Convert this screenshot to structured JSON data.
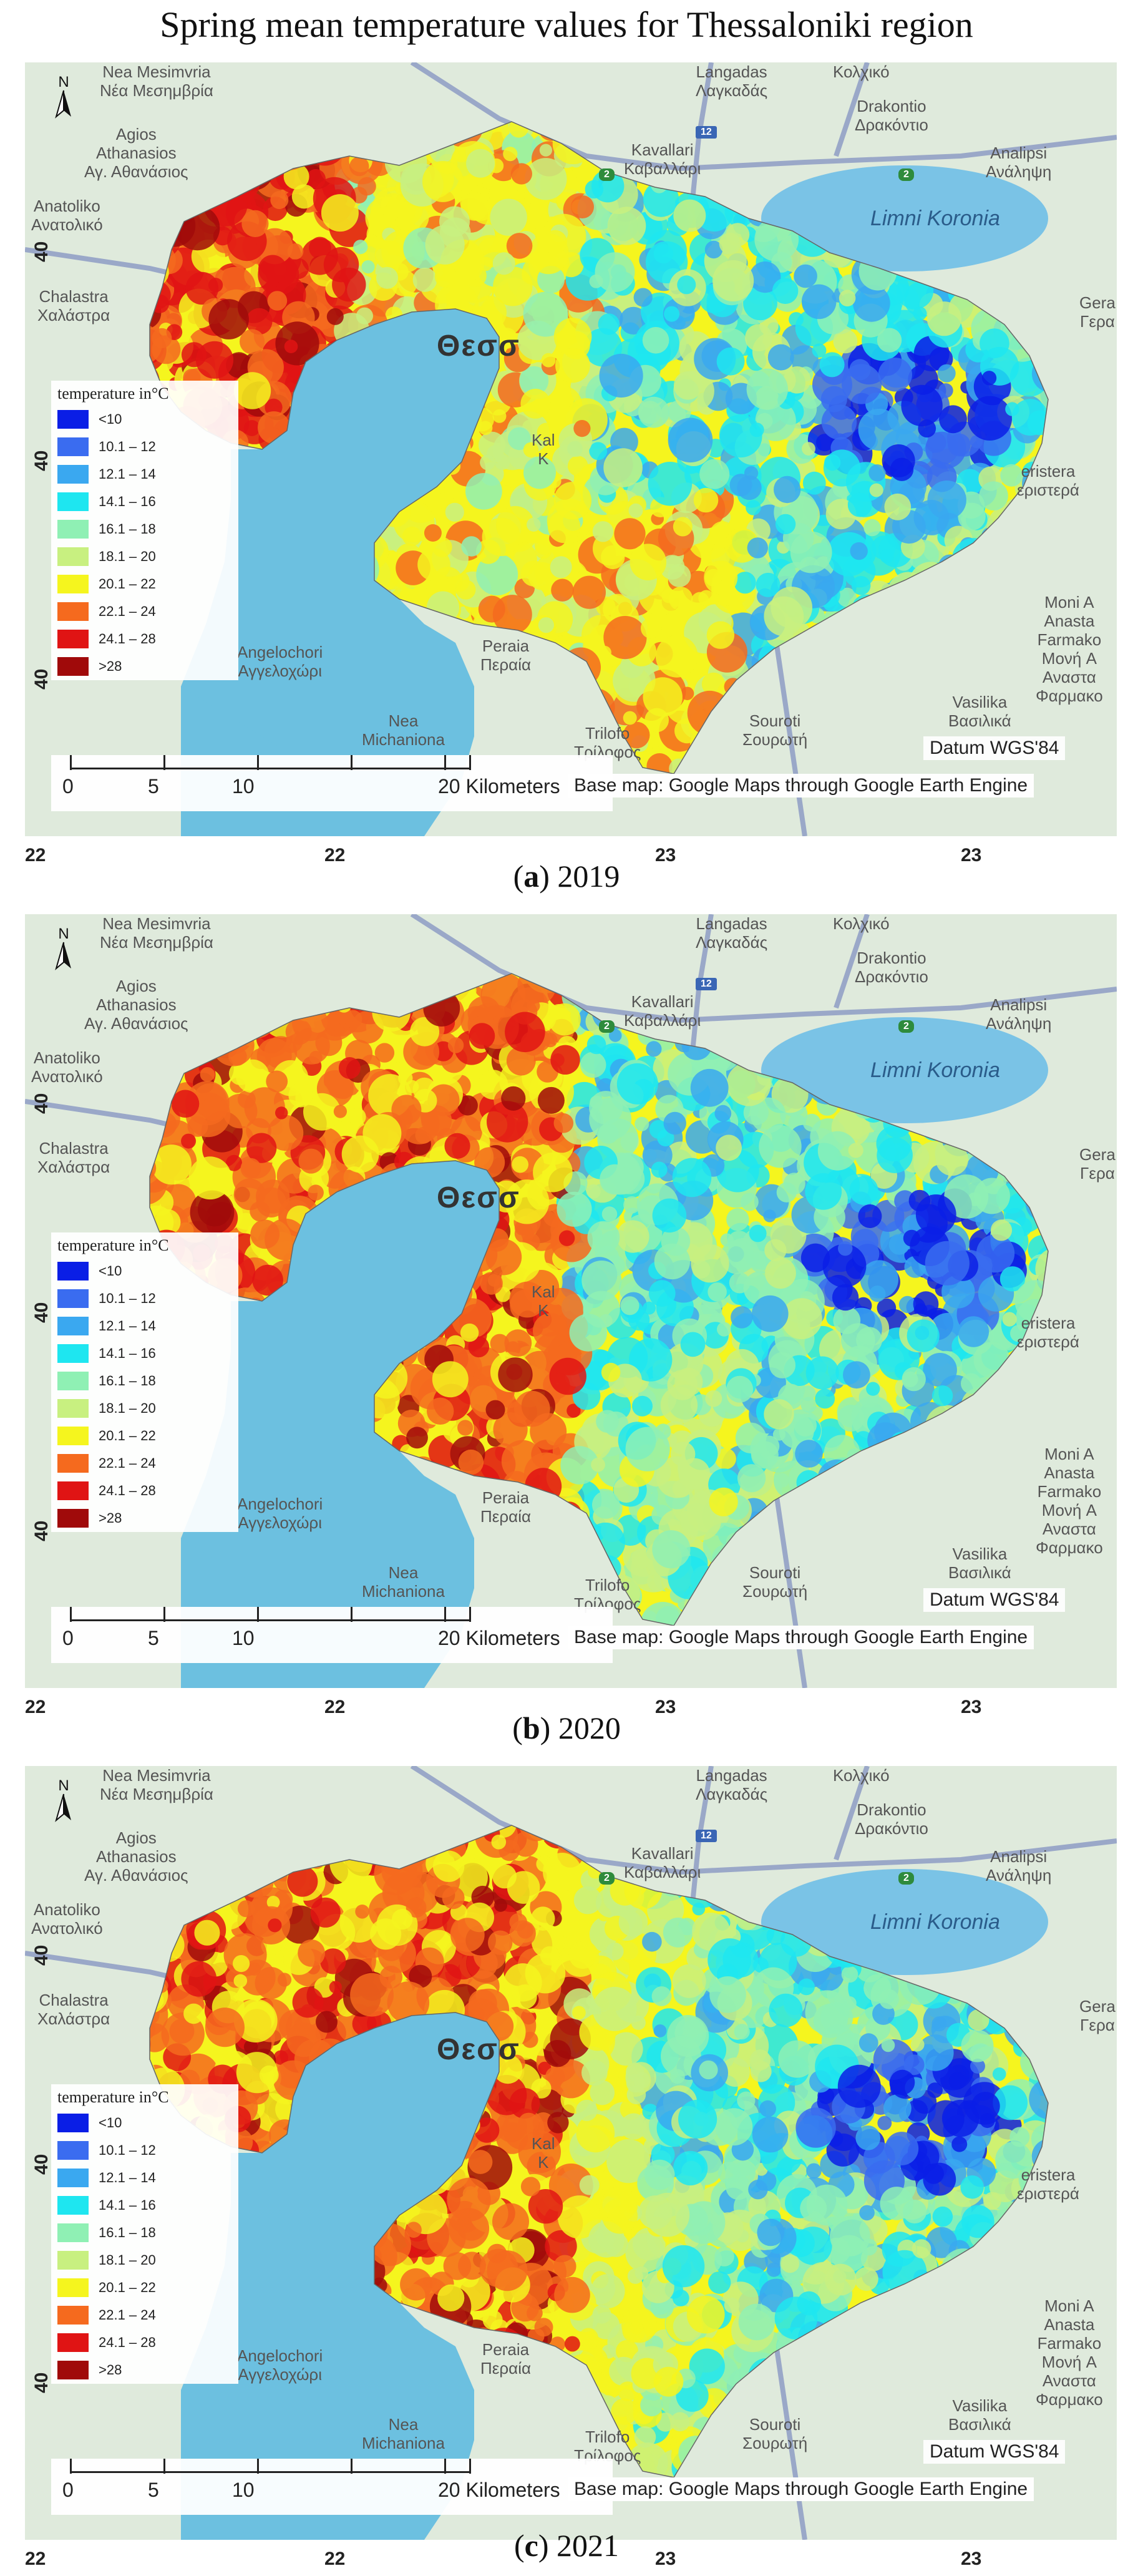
{
  "title": "Spring mean temperature values for Thessaloniki region",
  "legend": {
    "title": "temperature in°C",
    "items": [
      {
        "label": "<10",
        "color": "#0a1ee6"
      },
      {
        "label": "10.1 – 12",
        "color": "#3a6cf0"
      },
      {
        "label": "12.1 – 14",
        "color": "#3aa8f0"
      },
      {
        "label": "14.1 – 16",
        "color": "#1ee6f0"
      },
      {
        "label": "16.1 – 18",
        "color": "#8ff0b4"
      },
      {
        "label": "18.1 – 20",
        "color": "#c8f080"
      },
      {
        "label": "20.1 – 22",
        "color": "#f5f51e"
      },
      {
        "label": "22.1 – 24",
        "color": "#f56a1e"
      },
      {
        "label": "24.1 – 28",
        "color": "#e01414"
      },
      {
        "label": ">28",
        "color": "#a00a0a"
      }
    ]
  },
  "scale": {
    "labels": [
      "0",
      "5",
      "10",
      "20 Kilometers"
    ]
  },
  "datum": "Datum WGS'84",
  "basemap_credit": "Base map: Google Maps through Google Earth Engine",
  "north_label": "N",
  "lat_ticks": [
    "40",
    "40",
    "40"
  ],
  "lon_ticks": [
    "22",
    "22",
    "23",
    "23"
  ],
  "places": {
    "nea_mesimvria": "Nea Mesimvria\nΝέα Μεσημβρία",
    "agios_athanasios": "Agios\nAthanasios\nΑγ. Αθανάσιος",
    "anatoliko": "Anatoliko\nΑνατολικό",
    "chalastra": "Chalastra\nΧαλάστρα",
    "langadas": "Langadas\nΛαγκαδάς",
    "kolchiko": "Κολχικό",
    "drakontio": "Drakontio\nΔρακόντιο",
    "kavallari": "Kavallari\nΚαβαλλάρι",
    "analipsi": "Analipsi\nΑνάληψη",
    "limni_koronia": "Limni Koronia",
    "gera": "Gera\nΓερα",
    "peristera": "eristera\nεριστερά",
    "thessaloniki": "Θεσσ",
    "angelochori": "Angelochori\nΑγγελοχώρι",
    "peraia": "Peraia\nΠεραία",
    "nea_michaniona": "Nea\nMichaniona",
    "trilofo": "Trilofo\nΤρίλοφος",
    "souroti": "Souroti\nΣουρωτή",
    "vasilika": "Vasilika\nΒασιλικά",
    "moni": "Moni A\nAnasta\nFarmako\nMονή A\nΑναστα\nΦαρμακο",
    "kal": "Kal\nK",
    "road_12": "12",
    "road_2": "2",
    "road_2b": "2"
  },
  "panels": [
    {
      "letter": "a",
      "year": "2019",
      "west": "warm",
      "east": "cool-mixed"
    },
    {
      "letter": "b",
      "year": "2020",
      "west": "warm",
      "east": "cool"
    },
    {
      "letter": "c",
      "year": "2021",
      "west": "warm",
      "east": "cool"
    }
  ]
}
